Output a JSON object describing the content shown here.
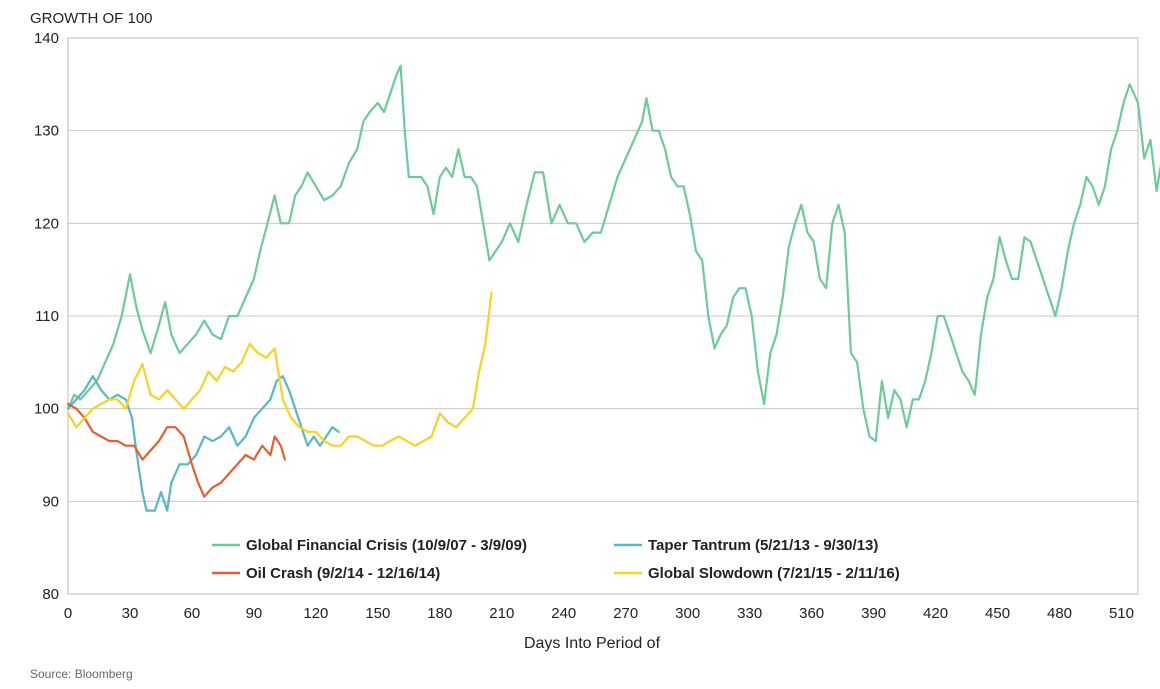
{
  "chart_data": {
    "type": "line",
    "title": "",
    "ylabel": "GROWTH OF 100",
    "xlabel": "Days Into Period of",
    "source": "Source: Bloomberg",
    "xlim": [
      0,
      518
    ],
    "ylim": [
      80,
      140
    ],
    "xticks": [
      0,
      30,
      60,
      90,
      120,
      150,
      180,
      210,
      240,
      270,
      300,
      330,
      360,
      390,
      420,
      450,
      480,
      510
    ],
    "yticks": [
      80,
      90,
      100,
      110,
      120,
      130,
      140
    ],
    "grid": "horizontal",
    "legend_placement": "bottom-center",
    "series": [
      {
        "name": "Global Financial Crisis (10/9/07 - 3/9/09)",
        "color": "#6ccb98",
        "points": [
          [
            0,
            100
          ],
          [
            3,
            101.5
          ],
          [
            6,
            101
          ],
          [
            10,
            102
          ],
          [
            14,
            103
          ],
          [
            18,
            105
          ],
          [
            22,
            107
          ],
          [
            26,
            110
          ],
          [
            30,
            114.5
          ],
          [
            33,
            111
          ],
          [
            36,
            108.5
          ],
          [
            40,
            106
          ],
          [
            44,
            109
          ],
          [
            47,
            111.5
          ],
          [
            50,
            108
          ],
          [
            54,
            106
          ],
          [
            58,
            107
          ],
          [
            62,
            108
          ],
          [
            66,
            109.5
          ],
          [
            70,
            108
          ],
          [
            74,
            107.5
          ],
          [
            78,
            110
          ],
          [
            82,
            110
          ],
          [
            86,
            112
          ],
          [
            90,
            114
          ],
          [
            93,
            117
          ],
          [
            96,
            119.5
          ],
          [
            100,
            123
          ],
          [
            103,
            120
          ],
          [
            107,
            120
          ],
          [
            110,
            123
          ],
          [
            113,
            124
          ],
          [
            116,
            125.5
          ],
          [
            120,
            124
          ],
          [
            124,
            122.5
          ],
          [
            128,
            123
          ],
          [
            132,
            124
          ],
          [
            136,
            126.5
          ],
          [
            140,
            128
          ],
          [
            143,
            131
          ],
          [
            146,
            132
          ],
          [
            150,
            133
          ],
          [
            153,
            132
          ],
          [
            156,
            134
          ],
          [
            159,
            136
          ],
          [
            161,
            137
          ],
          [
            163,
            130
          ],
          [
            165,
            125
          ],
          [
            168,
            125
          ],
          [
            171,
            125
          ],
          [
            174,
            124
          ],
          [
            177,
            121
          ],
          [
            180,
            125
          ],
          [
            183,
            126
          ],
          [
            186,
            125
          ],
          [
            189,
            128
          ],
          [
            192,
            125
          ],
          [
            195,
            125
          ],
          [
            198,
            124
          ],
          [
            201,
            120
          ],
          [
            204,
            116
          ],
          [
            207,
            117
          ],
          [
            210,
            118
          ],
          [
            214,
            120
          ],
          [
            218,
            118
          ],
          [
            222,
            122
          ],
          [
            226,
            125.5
          ],
          [
            230,
            125.5
          ],
          [
            234,
            120
          ],
          [
            238,
            122
          ],
          [
            242,
            120
          ],
          [
            246,
            120
          ],
          [
            250,
            118
          ],
          [
            254,
            119
          ],
          [
            258,
            119
          ],
          [
            262,
            122
          ],
          [
            266,
            125
          ],
          [
            270,
            127
          ],
          [
            274,
            129
          ],
          [
            278,
            131
          ],
          [
            280,
            133.5
          ],
          [
            283,
            130
          ],
          [
            286,
            130
          ],
          [
            289,
            128
          ],
          [
            292,
            125
          ],
          [
            295,
            124
          ],
          [
            298,
            124
          ],
          [
            301,
            121
          ],
          [
            304,
            117
          ],
          [
            307,
            116
          ],
          [
            310,
            110
          ],
          [
            313,
            106.5
          ],
          [
            316,
            108
          ],
          [
            319,
            109
          ],
          [
            322,
            112
          ],
          [
            325,
            113
          ],
          [
            328,
            113
          ],
          [
            331,
            110
          ],
          [
            334,
            104
          ],
          [
            337,
            100.5
          ],
          [
            340,
            106
          ],
          [
            343,
            108
          ],
          [
            346,
            112
          ],
          [
            349,
            117.5
          ],
          [
            352,
            120
          ],
          [
            355,
            122
          ],
          [
            358,
            119
          ],
          [
            361,
            118
          ],
          [
            364,
            114
          ],
          [
            367,
            113
          ],
          [
            370,
            120
          ],
          [
            373,
            122
          ],
          [
            376,
            119
          ],
          [
            379,
            106
          ],
          [
            382,
            105
          ],
          [
            385,
            100
          ],
          [
            388,
            97
          ],
          [
            391,
            96.5
          ],
          [
            394,
            103
          ],
          [
            397,
            99
          ],
          [
            400,
            102
          ],
          [
            403,
            101
          ],
          [
            406,
            98
          ],
          [
            409,
            101
          ],
          [
            412,
            101
          ],
          [
            415,
            103
          ],
          [
            418,
            106
          ],
          [
            421,
            110
          ],
          [
            424,
            110
          ],
          [
            427,
            108
          ],
          [
            430,
            106
          ],
          [
            433,
            104
          ],
          [
            436,
            103
          ],
          [
            439,
            101.5
          ],
          [
            442,
            108
          ],
          [
            445,
            112
          ],
          [
            448,
            114
          ],
          [
            451,
            118.5
          ],
          [
            454,
            116
          ],
          [
            457,
            114
          ],
          [
            460,
            114
          ],
          [
            463,
            118.5
          ],
          [
            466,
            118
          ],
          [
            469,
            116
          ],
          [
            472,
            114
          ],
          [
            475,
            112
          ],
          [
            478,
            110
          ],
          [
            481,
            113
          ],
          [
            484,
            117
          ],
          [
            487,
            120
          ],
          [
            490,
            122
          ],
          [
            493,
            125
          ],
          [
            496,
            124
          ],
          [
            499,
            122
          ],
          [
            502,
            124
          ],
          [
            505,
            128
          ],
          [
            508,
            130
          ],
          [
            511,
            133
          ],
          [
            514,
            135
          ],
          [
            516,
            134
          ],
          [
            518,
            133
          ],
          [
            521,
            127
          ],
          [
            524,
            129
          ],
          [
            527,
            123.5
          ],
          [
            530,
            127.5
          ],
          [
            533,
            127.5
          ],
          [
            535,
            124.5
          ]
        ]
      },
      {
        "name": "Taper Tantrum (5/21/13 - 9/30/13)",
        "color": "#55b7c9",
        "points": [
          [
            0,
            100
          ],
          [
            4,
            101
          ],
          [
            8,
            102
          ],
          [
            12,
            103.5
          ],
          [
            16,
            102
          ],
          [
            20,
            101
          ],
          [
            24,
            101.5
          ],
          [
            28,
            101
          ],
          [
            31,
            99
          ],
          [
            33,
            95.5
          ],
          [
            36,
            91
          ],
          [
            38,
            89
          ],
          [
            42,
            89
          ],
          [
            45,
            91
          ],
          [
            48,
            89
          ],
          [
            50,
            92
          ],
          [
            54,
            94
          ],
          [
            58,
            94
          ],
          [
            62,
            95
          ],
          [
            66,
            97
          ],
          [
            70,
            96.5
          ],
          [
            74,
            97
          ],
          [
            78,
            98
          ],
          [
            82,
            96
          ],
          [
            86,
            97
          ],
          [
            90,
            99
          ],
          [
            94,
            100
          ],
          [
            98,
            101
          ],
          [
            101,
            103
          ],
          [
            104,
            103.5
          ],
          [
            107,
            102
          ],
          [
            110,
            100
          ],
          [
            113,
            98
          ],
          [
            116,
            96
          ],
          [
            119,
            97
          ],
          [
            122,
            96
          ],
          [
            125,
            97
          ],
          [
            128,
            98
          ],
          [
            131,
            97.5
          ]
        ]
      },
      {
        "name": "Oil Crash (9/2/14 - 12/16/14)",
        "color": "#e35f2e",
        "points": [
          [
            0,
            100.5
          ],
          [
            4,
            100
          ],
          [
            8,
            99
          ],
          [
            12,
            97.5
          ],
          [
            16,
            97
          ],
          [
            20,
            96.5
          ],
          [
            24,
            96.5
          ],
          [
            28,
            96
          ],
          [
            32,
            96
          ],
          [
            36,
            94.5
          ],
          [
            40,
            95.5
          ],
          [
            44,
            96.5
          ],
          [
            48,
            98
          ],
          [
            52,
            98
          ],
          [
            56,
            97
          ],
          [
            60,
            94
          ],
          [
            63,
            92
          ],
          [
            66,
            90.5
          ],
          [
            70,
            91.5
          ],
          [
            74,
            92
          ],
          [
            78,
            93
          ],
          [
            82,
            94
          ],
          [
            86,
            95
          ],
          [
            90,
            94.5
          ],
          [
            94,
            96
          ],
          [
            98,
            95
          ],
          [
            100,
            97
          ],
          [
            103,
            96
          ],
          [
            105,
            94.5
          ]
        ]
      },
      {
        "name": "Global Slowdown (7/21/15 - 2/11/16)",
        "color": "#f6d31f",
        "points": [
          [
            0,
            99.5
          ],
          [
            4,
            98
          ],
          [
            8,
            99
          ],
          [
            12,
            100
          ],
          [
            16,
            100.5
          ],
          [
            20,
            101
          ],
          [
            24,
            101
          ],
          [
            28,
            100
          ],
          [
            32,
            103
          ],
          [
            36,
            104.8
          ],
          [
            40,
            101.5
          ],
          [
            44,
            101
          ],
          [
            48,
            102
          ],
          [
            52,
            101
          ],
          [
            56,
            100
          ],
          [
            60,
            101
          ],
          [
            64,
            102
          ],
          [
            68,
            104
          ],
          [
            72,
            103
          ],
          [
            76,
            104.5
          ],
          [
            80,
            104
          ],
          [
            84,
            105
          ],
          [
            88,
            107
          ],
          [
            92,
            106
          ],
          [
            96,
            105.5
          ],
          [
            100,
            106.5
          ],
          [
            104,
            101
          ],
          [
            108,
            99
          ],
          [
            112,
            98
          ],
          [
            116,
            97.5
          ],
          [
            120,
            97.5
          ],
          [
            124,
            96.5
          ],
          [
            128,
            96
          ],
          [
            132,
            96
          ],
          [
            136,
            97
          ],
          [
            140,
            97
          ],
          [
            144,
            96.5
          ],
          [
            148,
            96
          ],
          [
            152,
            96
          ],
          [
            156,
            96.5
          ],
          [
            160,
            97
          ],
          [
            164,
            96.5
          ],
          [
            168,
            96
          ],
          [
            172,
            96.5
          ],
          [
            176,
            97
          ],
          [
            180,
            99.5
          ],
          [
            184,
            98.5
          ],
          [
            188,
            98
          ],
          [
            192,
            99
          ],
          [
            196,
            100
          ],
          [
            199,
            104
          ],
          [
            202,
            107
          ],
          [
            205,
            112.5
          ]
        ]
      }
    ]
  }
}
